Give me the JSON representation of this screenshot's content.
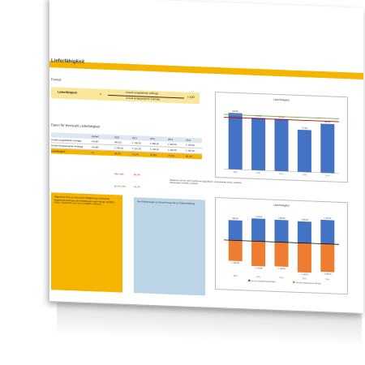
{
  "doc": {
    "title": "Lieferfähigkeit",
    "section_formula": "Formel",
    "formula_label": "Lieferfähigkeit",
    "formula_eq": "=",
    "formula_num": "Anzahl ausgelieferter Aufträge",
    "formula_den": "Anzahl eingegangener Aufträge",
    "formula_mul": "x 100",
    "section_data": "Daten für Kennzahl Lieferfähigkeit",
    "table": {
      "headers": [
        "",
        "Einheit",
        "2010",
        "2011",
        "2012",
        "2013",
        "2014"
      ],
      "rows": [
        [
          "Anzahl ausgelieferter Aufträge",
          "Anzahl",
          "980,00",
          "1.105,00",
          "1.080,00",
          "1.050,00",
          "1.165,00"
        ],
        [
          "Anzahl eingegangener Aufträge",
          "Anzahl",
          "1.000,00",
          "1.210,00",
          "1.190,00",
          "1.430,00",
          "1.365,00"
        ],
        [
          "Lieferfähigkeit",
          "%",
          "98,0%",
          "91,3%",
          "90,8%",
          "73,4%",
          "85,3%"
        ]
      ]
    },
    "rot_label": "rote Linie",
    "rot_value": "90,0%",
    "gruen_label": "grüne Linie",
    "gruen_value": "95,0%",
    "note": "Definieren Sie hier noch zusätzliche Signallinien, um bestimmte Alarm- und/oder Zielvorgaben im Blick zu haben.",
    "panel_yellow": "Allgemeine Infos zur Kennzahl: Fähigkeit des Lieferanten, eingehende Aufträge oder Bestellungen nach Menge, Qualität, Preis, Liefertermin und -ort zu erfüllen zu können",
    "panel_blue": "Ihre Erläuterungen zur Berechnung und zur Datenerhebung"
  },
  "colors": {
    "accent": "#f4b400",
    "bar_blue": "#4472c4",
    "bar_orange": "#ed7d31",
    "line_red": "#c00000",
    "line_green": "#70ad47"
  },
  "chart_data": [
    {
      "type": "bar",
      "title": "Lieferfähigkeit",
      "categories": [
        "2010",
        "2011",
        "2012",
        "2013",
        "2014"
      ],
      "values": [
        98.0,
        91.3,
        90.8,
        73.4,
        85.3
      ],
      "labels": [
        "98,0%",
        "91,3%",
        "90,8%",
        "73,4%",
        "85,3%"
      ],
      "ylim": [
        0,
        110
      ],
      "reference_lines": [
        {
          "value": 95,
          "color": "#70ad47"
        },
        {
          "value": 90,
          "color": "#c00000"
        }
      ]
    },
    {
      "type": "bar",
      "title": "Lieferfähigkeit",
      "categories": [
        "2010",
        "2011",
        "2012",
        "2013",
        "2014"
      ],
      "series": [
        {
          "name": "Anzahl ausgelieferter Aufträge",
          "values": [
            980,
            1105,
            1080,
            1050,
            1165
          ]
        },
        {
          "name": "Anzahl eingegangener Aufträge",
          "values": [
            -1000,
            -1210,
            -1190,
            -1430,
            -1365
          ]
        }
      ],
      "labels_top": [
        "980,00",
        "1.105,00",
        "1.080,00",
        "1.050,00",
        "1.165,00"
      ],
      "labels_bottom": [
        "-1.000,00",
        "-1.210,00",
        "-1.190,00",
        "-1.430,00",
        "-1.365,00"
      ],
      "ylim": [
        -1600,
        1400
      ]
    }
  ]
}
